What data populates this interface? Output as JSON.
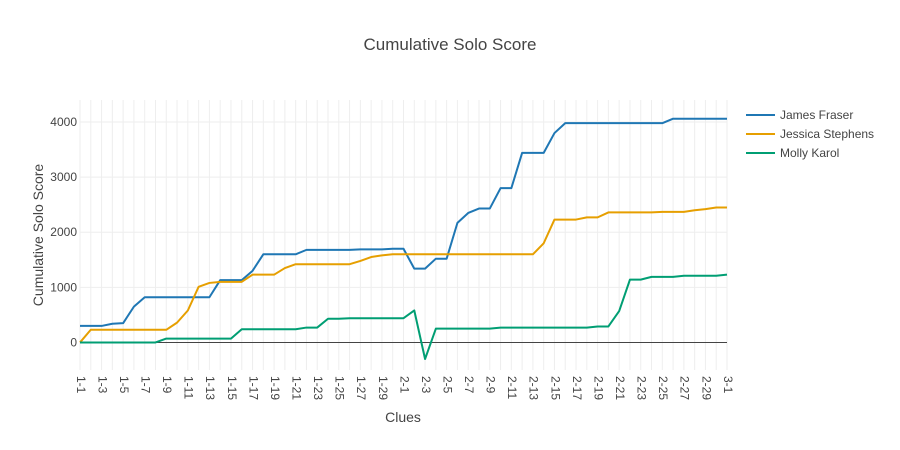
{
  "chart_data": {
    "type": "line",
    "title": "Cumulative Solo Score",
    "xlabel": "Clues",
    "ylabel": "Cumulative Solo Score",
    "ylim": [
      -500,
      4400
    ],
    "yticks": [
      0,
      1000,
      2000,
      3000,
      4000
    ],
    "ytick_labels": [
      "0",
      "1000",
      "2000",
      "3000",
      "4000"
    ],
    "grid": true,
    "legend_position": "top-right",
    "x": [
      "1-1",
      "1-2",
      "1-3",
      "1-4",
      "1-5",
      "1-6",
      "1-7",
      "1-8",
      "1-9",
      "1-10",
      "1-11",
      "1-12",
      "1-13",
      "1-14",
      "1-15",
      "1-16",
      "1-17",
      "1-18",
      "1-19",
      "1-20",
      "1-21",
      "1-22",
      "1-23",
      "1-24",
      "1-25",
      "1-26",
      "1-27",
      "1-28",
      "1-29",
      "1-30",
      "2-1",
      "2-2",
      "2-3",
      "2-4",
      "2-5",
      "2-6",
      "2-7",
      "2-8",
      "2-9",
      "2-10",
      "2-11",
      "2-12",
      "2-13",
      "2-14",
      "2-15",
      "2-16",
      "2-17",
      "2-18",
      "2-19",
      "2-20",
      "2-21",
      "2-22",
      "2-23",
      "2-24",
      "2-25",
      "2-26",
      "2-27",
      "2-28",
      "2-29",
      "2-30",
      "3-1"
    ],
    "xtick_labels": [
      "1-1",
      "1-3",
      "1-5",
      "1-7",
      "1-9",
      "1-11",
      "1-13",
      "1-15",
      "1-17",
      "1-19",
      "1-21",
      "1-23",
      "1-25",
      "1-27",
      "1-29",
      "2-1",
      "2-3",
      "2-5",
      "2-7",
      "2-9",
      "2-11",
      "2-13",
      "2-15",
      "2-17",
      "2-19",
      "2-21",
      "2-23",
      "2-25",
      "2-27",
      "2-29",
      "3-1"
    ],
    "series": [
      {
        "name": "James Fraser",
        "color": "#1f77b4",
        "values": [
          300,
          300,
          300,
          340,
          350,
          650,
          820,
          820,
          820,
          820,
          820,
          820,
          820,
          1130,
          1130,
          1130,
          1300,
          1600,
          1600,
          1600,
          1600,
          1680,
          1680,
          1680,
          1680,
          1680,
          1690,
          1690,
          1690,
          1700,
          1700,
          1340,
          1340,
          1520,
          1520,
          2170,
          2350,
          2430,
          2430,
          2800,
          2800,
          3440,
          3440,
          3440,
          3800,
          3980,
          3980,
          3980,
          3980,
          3980,
          3980,
          3980,
          3980,
          3980,
          3980,
          4060,
          4060,
          4060,
          4060,
          4060,
          4060
        ]
      },
      {
        "name": "Jessica Stephens",
        "color": "#e69f00",
        "values": [
          0,
          230,
          230,
          230,
          230,
          230,
          230,
          230,
          230,
          360,
          580,
          1010,
          1080,
          1100,
          1100,
          1100,
          1230,
          1230,
          1230,
          1350,
          1420,
          1420,
          1420,
          1420,
          1420,
          1420,
          1480,
          1550,
          1580,
          1600,
          1600,
          1600,
          1600,
          1600,
          1600,
          1600,
          1600,
          1600,
          1600,
          1600,
          1600,
          1600,
          1600,
          1800,
          2230,
          2230,
          2230,
          2270,
          2270,
          2360,
          2360,
          2360,
          2360,
          2360,
          2370,
          2370,
          2370,
          2400,
          2420,
          2450,
          2450
        ]
      },
      {
        "name": "Molly Karol",
        "color": "#009e73",
        "values": [
          0,
          0,
          0,
          0,
          0,
          0,
          0,
          0,
          70,
          70,
          70,
          70,
          70,
          70,
          70,
          240,
          240,
          240,
          240,
          240,
          240,
          270,
          270,
          430,
          430,
          440,
          440,
          440,
          440,
          440,
          440,
          580,
          -300,
          250,
          250,
          250,
          250,
          250,
          250,
          270,
          270,
          270,
          270,
          270,
          270,
          270,
          270,
          270,
          290,
          290,
          570,
          1140,
          1140,
          1190,
          1190,
          1190,
          1210,
          1210,
          1210,
          1210,
          1230
        ]
      }
    ]
  }
}
